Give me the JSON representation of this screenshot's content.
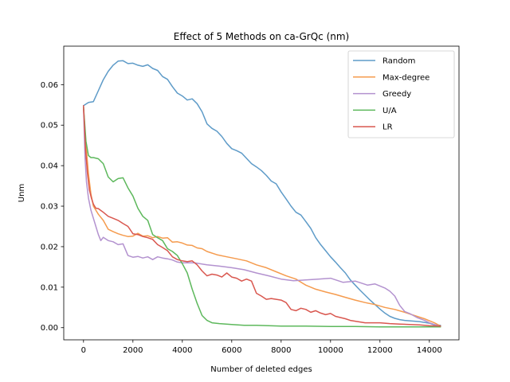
{
  "chart_data": {
    "type": "line",
    "title": "Effect of 5 Methods on ca-GrQc (nm)",
    "xlabel": "Number of deleted edges",
    "ylabel": "Unm",
    "xlim": [
      -800,
      15200
    ],
    "ylim": [
      -0.003,
      0.0695
    ],
    "xticks": [
      0,
      2000,
      4000,
      6000,
      8000,
      10000,
      12000,
      14000
    ],
    "xtick_labels": [
      "0",
      "2000",
      "4000",
      "6000",
      "8000",
      "10000",
      "12000",
      "14000"
    ],
    "yticks": [
      0.0,
      0.01,
      0.02,
      0.03,
      0.04,
      0.05,
      0.06
    ],
    "ytick_labels": [
      "0.00",
      "0.01",
      "0.02",
      "0.03",
      "0.04",
      "0.05",
      "0.06"
    ],
    "grid": false,
    "legend_position": "top-right",
    "series": [
      {
        "name": "Random",
        "color": "#5e9bc8",
        "x": [
          0,
          200,
          400,
          600,
          800,
          1000,
          1200,
          1400,
          1600,
          1800,
          2000,
          2200,
          2400,
          2600,
          2800,
          3000,
          3200,
          3400,
          3600,
          3800,
          4000,
          4200,
          4400,
          4600,
          4800,
          5000,
          5200,
          5400,
          5600,
          5800,
          6000,
          6200,
          6400,
          6600,
          6800,
          7000,
          7200,
          7400,
          7600,
          7800,
          8000,
          8200,
          8400,
          8600,
          8800,
          9000,
          9200,
          9400,
          9600,
          9800,
          10000,
          10200,
          10400,
          10600,
          10800,
          11000,
          11200,
          11400,
          11600,
          11800,
          12000,
          12200,
          12400,
          12600,
          12800,
          13000,
          13200,
          13400,
          13600,
          13800,
          14000,
          14200,
          14450
        ],
        "y": [
          0.0548,
          0.0556,
          0.0558,
          0.0585,
          0.0612,
          0.0633,
          0.0648,
          0.0658,
          0.0659,
          0.0652,
          0.0653,
          0.0648,
          0.0645,
          0.0649,
          0.064,
          0.0635,
          0.062,
          0.0613,
          0.0595,
          0.0579,
          0.0572,
          0.0562,
          0.0565,
          0.0553,
          0.0533,
          0.0503,
          0.0492,
          0.0485,
          0.0472,
          0.0455,
          0.0442,
          0.0437,
          0.0431,
          0.0418,
          0.0405,
          0.0397,
          0.0388,
          0.0376,
          0.0362,
          0.0355,
          0.0335,
          0.0318,
          0.03,
          0.0285,
          0.0278,
          0.0262,
          0.0245,
          0.0222,
          0.0205,
          0.019,
          0.0175,
          0.0162,
          0.0148,
          0.0135,
          0.0118,
          0.0105,
          0.0092,
          0.008,
          0.0068,
          0.0057,
          0.0046,
          0.0036,
          0.0028,
          0.0023,
          0.002,
          0.0018,
          0.0017,
          0.0016,
          0.0015,
          0.0013,
          0.0011,
          0.0007,
          0.0006
        ]
      },
      {
        "name": "Max-degree",
        "color": "#f59b4e",
        "x": [
          0,
          100,
          200,
          300,
          400,
          500,
          600,
          800,
          1000,
          1200,
          1400,
          1600,
          1800,
          2000,
          2200,
          2400,
          2600,
          2800,
          3000,
          3200,
          3400,
          3600,
          3800,
          4000,
          4200,
          4400,
          4600,
          4800,
          5000,
          5400,
          5800,
          6200,
          6600,
          7000,
          7400,
          7800,
          8200,
          8600,
          9000,
          9400,
          9800,
          10200,
          10600,
          11000,
          11400,
          11800,
          12200,
          12600,
          13000,
          13400,
          13800,
          14200,
          14450
        ],
        "y": [
          0.054,
          0.045,
          0.038,
          0.033,
          0.03,
          0.029,
          0.028,
          0.0265,
          0.0243,
          0.0237,
          0.0232,
          0.0228,
          0.0225,
          0.0226,
          0.0233,
          0.0226,
          0.0227,
          0.0222,
          0.0225,
          0.0221,
          0.0222,
          0.0211,
          0.0212,
          0.0209,
          0.0204,
          0.0203,
          0.0197,
          0.0195,
          0.0188,
          0.018,
          0.0175,
          0.017,
          0.0165,
          0.0155,
          0.0148,
          0.0138,
          0.0128,
          0.012,
          0.0105,
          0.0095,
          0.0088,
          0.0082,
          0.0075,
          0.0068,
          0.0062,
          0.0057,
          0.005,
          0.0045,
          0.0038,
          0.003,
          0.0022,
          0.0012,
          0.0004
        ]
      },
      {
        "name": "Greedy",
        "color": "#b392cf",
        "x": [
          0,
          60,
          120,
          200,
          300,
          400,
          500,
          600,
          700,
          800,
          1000,
          1200,
          1400,
          1600,
          1800,
          2000,
          2200,
          2400,
          2600,
          2800,
          3000,
          3200,
          3400,
          3600,
          3800,
          4000,
          4500,
          5000,
          5500,
          6000,
          6500,
          7000,
          7500,
          8000,
          8500,
          9000,
          9500,
          10000,
          10500,
          11000,
          11500,
          11800,
          12200,
          12400,
          12600,
          12800,
          13000,
          13200,
          13500,
          13800,
          14000,
          14200,
          14450
        ],
        "y": [
          0.0545,
          0.042,
          0.036,
          0.032,
          0.029,
          0.027,
          0.025,
          0.023,
          0.0215,
          0.0223,
          0.0215,
          0.0212,
          0.0205,
          0.0207,
          0.0178,
          0.0174,
          0.0176,
          0.0172,
          0.0175,
          0.0168,
          0.0175,
          0.0172,
          0.017,
          0.0167,
          0.0162,
          0.016,
          0.016,
          0.0155,
          0.0152,
          0.0148,
          0.0143,
          0.0135,
          0.0128,
          0.012,
          0.0116,
          0.0118,
          0.012,
          0.0122,
          0.0112,
          0.0115,
          0.0105,
          0.0108,
          0.0098,
          0.009,
          0.0078,
          0.0055,
          0.004,
          0.0035,
          0.0025,
          0.0018,
          0.0012,
          0.0008,
          0.0003
        ]
      },
      {
        "name": "U/A",
        "color": "#5db85c",
        "x": [
          0,
          100,
          200,
          300,
          400,
          600,
          800,
          1000,
          1200,
          1400,
          1600,
          1800,
          2000,
          2200,
          2400,
          2600,
          2800,
          3000,
          3200,
          3400,
          3600,
          3800,
          4000,
          4200,
          4400,
          4600,
          4800,
          5000,
          5200,
          5500,
          6000,
          6500,
          7000,
          7500,
          8000,
          8500,
          9000,
          10000,
          11000,
          12000,
          13000,
          14000,
          14450
        ],
        "y": [
          0.0545,
          0.046,
          0.0425,
          0.042,
          0.042,
          0.0417,
          0.0405,
          0.0372,
          0.036,
          0.0368,
          0.037,
          0.0345,
          0.0325,
          0.0295,
          0.0275,
          0.0265,
          0.023,
          0.0222,
          0.0215,
          0.0195,
          0.0188,
          0.0178,
          0.0158,
          0.0135,
          0.0095,
          0.006,
          0.003,
          0.0018,
          0.0012,
          0.001,
          0.0008,
          0.0006,
          0.0006,
          0.0005,
          0.0004,
          0.0004,
          0.0004,
          0.0003,
          0.0003,
          0.0002,
          0.0002,
          0.0002,
          0.0002
        ]
      },
      {
        "name": "LR",
        "color": "#d9574f",
        "x": [
          0,
          80,
          160,
          240,
          320,
          400,
          500,
          600,
          800,
          1000,
          1200,
          1400,
          1600,
          1800,
          2000,
          2200,
          2400,
          2600,
          2800,
          3000,
          3200,
          3400,
          3600,
          3800,
          4000,
          4200,
          4400,
          4600,
          4800,
          5000,
          5200,
          5400,
          5600,
          5800,
          6000,
          6200,
          6400,
          6600,
          6800,
          7000,
          7200,
          7400,
          7600,
          7800,
          8000,
          8200,
          8400,
          8600,
          8800,
          9000,
          9200,
          9400,
          9600,
          9800,
          10000,
          10200,
          10400,
          10600,
          10800,
          11000,
          11200,
          11400,
          11600,
          11800,
          12000,
          12400,
          12800,
          13200,
          13600,
          14000,
          14450
        ],
        "y": [
          0.0548,
          0.044,
          0.038,
          0.034,
          0.032,
          0.0305,
          0.0295,
          0.0294,
          0.0285,
          0.0275,
          0.027,
          0.0265,
          0.0257,
          0.025,
          0.0232,
          0.023,
          0.0225,
          0.0222,
          0.0218,
          0.0205,
          0.0198,
          0.019,
          0.0175,
          0.0168,
          0.0165,
          0.0163,
          0.0165,
          0.0155,
          0.014,
          0.0128,
          0.0132,
          0.013,
          0.0125,
          0.0135,
          0.0125,
          0.0122,
          0.0115,
          0.012,
          0.0115,
          0.0085,
          0.0078,
          0.007,
          0.0072,
          0.007,
          0.0068,
          0.0062,
          0.0045,
          0.0042,
          0.0048,
          0.0045,
          0.0038,
          0.0042,
          0.0036,
          0.0032,
          0.0035,
          0.0028,
          0.0025,
          0.0022,
          0.0018,
          0.0016,
          0.0014,
          0.0012,
          0.0012,
          0.0012,
          0.0012,
          0.001,
          0.0009,
          0.0008,
          0.0007,
          0.0005,
          0.0004
        ]
      }
    ]
  }
}
